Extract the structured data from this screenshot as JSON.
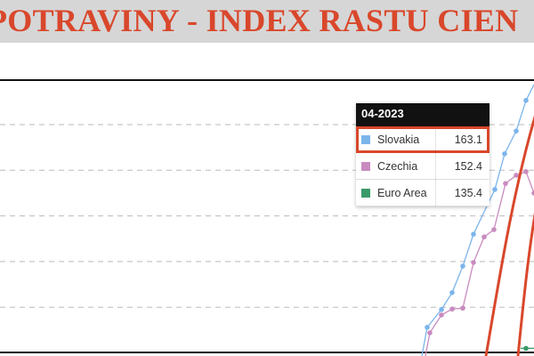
{
  "title": "POTRAVINY - INDEX RASTU CIEN",
  "chart_data": {
    "type": "line",
    "title": "POTRAVINY - INDEX RASTU CIEN",
    "grid": true,
    "gridline_values": [
      120,
      130,
      140,
      150,
      160
    ],
    "ylim": [
      110,
      166
    ],
    "series": [
      {
        "name": "Slovakia",
        "color": "#7cb5ec",
        "values": [
          115.6,
          119.5,
          123.2,
          129.0,
          136.0,
          145.8,
          153.6,
          158.6,
          165.3
        ]
      },
      {
        "name": "Czechia",
        "color": "#c98bbf",
        "values": [
          114.4,
          118.3,
          119.6,
          119.8,
          129.8,
          135.4,
          137.0,
          147.1,
          148.9,
          149.7,
          145.0
        ]
      },
      {
        "name": "Euro Area",
        "color": "#3a9a6a",
        "values": [
          111.0
        ]
      }
    ],
    "annotation_color": "#d9472b"
  },
  "tooltip": {
    "date": "04-2023",
    "rows": [
      {
        "name": "Slovakia",
        "value": "163.1",
        "color": "#7cb5ec",
        "highlighted": true
      },
      {
        "name": "Czechia",
        "value": "152.4",
        "color": "#c98bbf"
      },
      {
        "name": "Euro Area",
        "value": "135.4",
        "color": "#3a9a6a"
      }
    ]
  }
}
